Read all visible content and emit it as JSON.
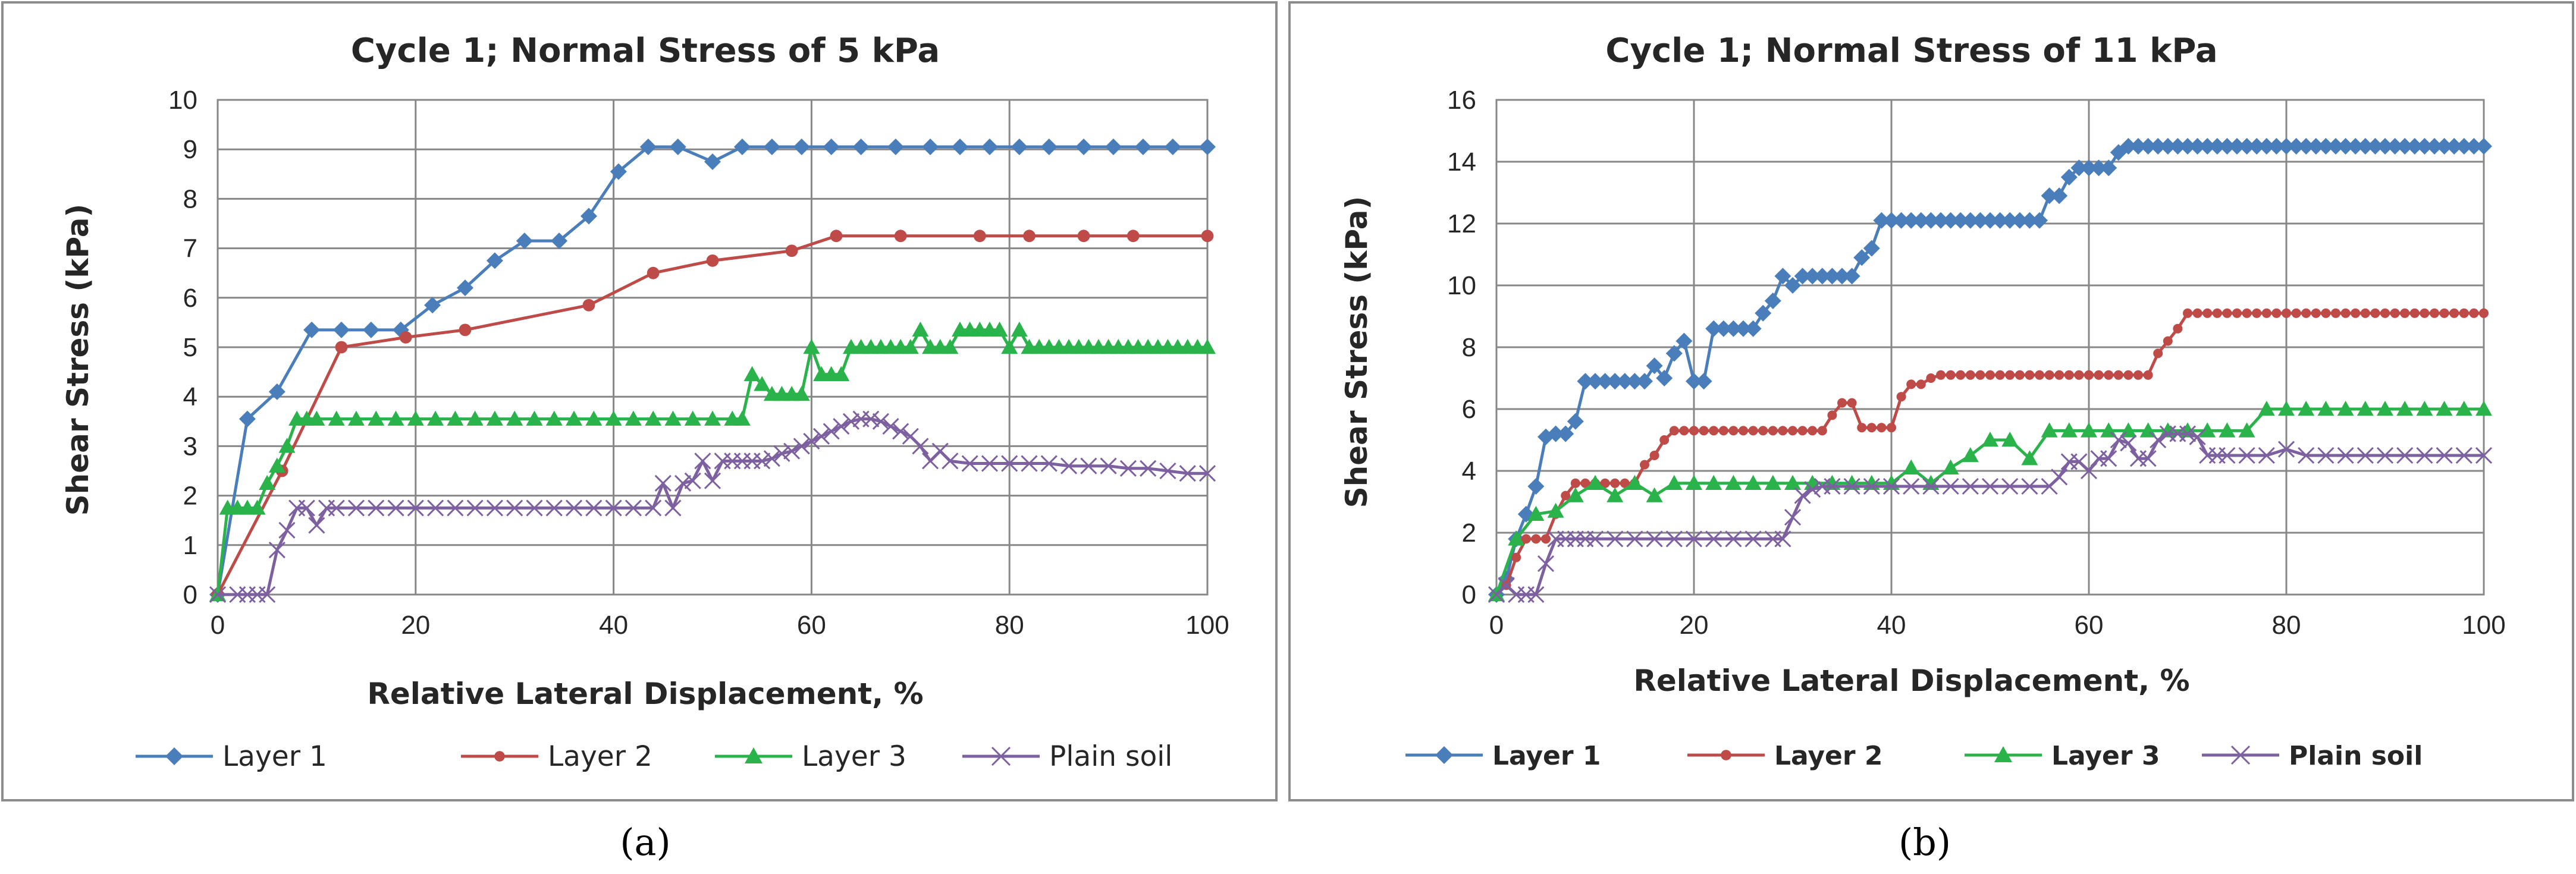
{
  "chart_data": [
    {
      "type": "line",
      "panel_label": "(a)",
      "title": "Cycle 1; Normal Stress of 5 kPa",
      "xlabel": "Relative Lateral Displacement, %",
      "ylabel": "Shear Stress (kPa)",
      "xlim": [
        0,
        100
      ],
      "ylim": [
        0,
        10
      ],
      "xticks": [
        0,
        20,
        40,
        60,
        80,
        100
      ],
      "yticks": [
        0,
        1,
        2,
        3,
        4,
        5,
        6,
        7,
        8,
        9,
        10
      ],
      "grid": true,
      "legend_position": "bottom",
      "legend_bold": false,
      "series": [
        {
          "name": "Layer 1",
          "color": "#4a7ebb",
          "marker": "diamond",
          "x": [
            0,
            3,
            6,
            9.5,
            12.5,
            15.5,
            18.5,
            21.7,
            25,
            28,
            31,
            34.5,
            37.5,
            40.5,
            43.5,
            46.5,
            50,
            53,
            56,
            59,
            62,
            65,
            68.5,
            72,
            75,
            78,
            81,
            84,
            87.5,
            90.5,
            93.5,
            96.5,
            100
          ],
          "y": [
            0,
            3.55,
            4.1,
            5.35,
            5.35,
            5.35,
            5.35,
            5.85,
            6.2,
            6.75,
            7.15,
            7.15,
            7.65,
            8.55,
            9.05,
            9.05,
            8.75,
            9.05,
            9.05,
            9.05,
            9.05,
            9.05,
            9.05,
            9.05,
            9.05,
            9.05,
            9.05,
            9.05,
            9.05,
            9.05,
            9.05,
            9.05,
            9.05
          ]
        },
        {
          "name": "Layer 2",
          "color": "#be4b48",
          "marker": "circle",
          "x": [
            0,
            6.5,
            12.5,
            19,
            25,
            37.5,
            44,
            50,
            58,
            62.5,
            69,
            77,
            82,
            87.5,
            92.5,
            100
          ],
          "y": [
            0,
            2.5,
            5.0,
            5.2,
            5.35,
            5.85,
            6.5,
            6.75,
            6.95,
            7.25,
            7.25,
            7.25,
            7.25,
            7.25,
            7.25,
            7.25
          ]
        },
        {
          "name": "Layer 3",
          "color": "#2ab34a",
          "marker": "triangle",
          "x": [
            0,
            1,
            2,
            3,
            4,
            5,
            6,
            7,
            8,
            9,
            10,
            12,
            14,
            16,
            18,
            20,
            22,
            24,
            26,
            28,
            30,
            32,
            34,
            36,
            38,
            40,
            42,
            44,
            46,
            48,
            50,
            52,
            53,
            54,
            55,
            56,
            57,
            58,
            59,
            60,
            61,
            62,
            63,
            64,
            65,
            66,
            67,
            68,
            69,
            70,
            71,
            72,
            73,
            74,
            75,
            76,
            77,
            78,
            79,
            80,
            81,
            82,
            83,
            84,
            85,
            86,
            87,
            88,
            89,
            90,
            91,
            92,
            93,
            94,
            95,
            96,
            97,
            98,
            99,
            100
          ],
          "y": [
            0,
            1.75,
            1.75,
            1.75,
            1.75,
            2.25,
            2.6,
            3.0,
            3.55,
            3.55,
            3.55,
            3.55,
            3.55,
            3.55,
            3.55,
            3.55,
            3.55,
            3.55,
            3.55,
            3.55,
            3.55,
            3.55,
            3.55,
            3.55,
            3.55,
            3.55,
            3.55,
            3.55,
            3.55,
            3.55,
            3.55,
            3.55,
            3.55,
            4.45,
            4.25,
            4.05,
            4.05,
            4.05,
            4.05,
            5.0,
            4.45,
            4.45,
            4.45,
            5.0,
            5.0,
            5.0,
            5.0,
            5.0,
            5.0,
            5.0,
            5.35,
            5.0,
            5.0,
            5.0,
            5.35,
            5.35,
            5.35,
            5.35,
            5.35,
            5.0,
            5.35,
            5.0,
            5.0,
            5.0,
            5.0,
            5.0,
            5.0,
            5.0,
            5.0,
            5.0,
            5.0,
            5.0,
            5.0,
            5.0,
            5.0,
            5.0,
            5.0,
            5.0,
            5.0,
            5.0
          ]
        },
        {
          "name": "Plain soil",
          "color": "#7d60a0",
          "marker": "x",
          "x": [
            0,
            2,
            3,
            4,
            5,
            6,
            7,
            8,
            9,
            10,
            11,
            12,
            14,
            16,
            18,
            20,
            22,
            24,
            26,
            28,
            30,
            32,
            34,
            36,
            38,
            40,
            42,
            44,
            45,
            46,
            47,
            48,
            49,
            50,
            51,
            52,
            53,
            54,
            55,
            56,
            57,
            58,
            59,
            60,
            61,
            62,
            63,
            64,
            65,
            66,
            67,
            68,
            69,
            70,
            71,
            72,
            73,
            74,
            76,
            78,
            80,
            82,
            84,
            86,
            88,
            90,
            92,
            94,
            96,
            98,
            100
          ],
          "y": [
            0,
            0,
            0,
            0,
            0,
            0.9,
            1.3,
            1.75,
            1.75,
            1.4,
            1.75,
            1.75,
            1.75,
            1.75,
            1.75,
            1.75,
            1.75,
            1.75,
            1.75,
            1.75,
            1.75,
            1.75,
            1.75,
            1.75,
            1.75,
            1.75,
            1.75,
            1.75,
            2.25,
            1.75,
            2.25,
            2.3,
            2.7,
            2.3,
            2.7,
            2.7,
            2.7,
            2.7,
            2.7,
            2.75,
            2.85,
            2.9,
            3.0,
            3.1,
            3.2,
            3.3,
            3.4,
            3.5,
            3.55,
            3.55,
            3.5,
            3.4,
            3.3,
            3.2,
            3.0,
            2.7,
            2.9,
            2.7,
            2.65,
            2.65,
            2.65,
            2.65,
            2.65,
            2.6,
            2.6,
            2.6,
            2.55,
            2.55,
            2.5,
            2.45,
            2.45
          ]
        }
      ]
    },
    {
      "type": "line",
      "panel_label": "(b)",
      "title": "Cycle 1; Normal Stress of 11 kPa",
      "xlabel": "Relative Lateral Displacement, %",
      "ylabel": "Shear Stress (kPa)",
      "xlim": [
        0,
        100
      ],
      "ylim": [
        0,
        16
      ],
      "xticks": [
        0,
        20,
        40,
        60,
        80,
        100
      ],
      "yticks": [
        0,
        2,
        4,
        6,
        8,
        10,
        12,
        14,
        16
      ],
      "grid": true,
      "legend_position": "bottom",
      "legend_bold": true,
      "series": [
        {
          "name": "Layer 1",
          "color": "#4a7ebb",
          "marker": "diamond",
          "x": [
            0,
            1,
            2,
            3,
            4,
            5,
            6,
            7,
            8,
            9,
            10,
            11,
            12,
            13,
            14,
            15,
            16,
            17,
            18,
            19,
            20,
            21,
            22,
            23,
            24,
            25,
            26,
            27,
            28,
            29,
            30,
            31,
            32,
            33,
            34,
            35,
            36,
            37,
            38,
            39,
            40,
            41,
            42,
            43,
            44,
            45,
            46,
            47,
            48,
            49,
            50,
            51,
            52,
            53,
            54,
            55,
            56,
            57,
            58,
            59,
            60,
            61,
            62,
            63,
            64,
            65,
            66,
            67,
            68,
            69,
            70,
            71,
            72,
            73,
            74,
            75,
            76,
            77,
            78,
            79,
            80,
            81,
            82,
            83,
            84,
            85,
            86,
            87,
            88,
            89,
            90,
            91,
            92,
            93,
            94,
            95,
            96,
            97,
            98,
            99,
            100
          ],
          "y": [
            0,
            0.5,
            1.8,
            2.6,
            3.5,
            5.1,
            5.2,
            5.2,
            5.6,
            6.9,
            6.9,
            6.9,
            6.9,
            6.9,
            6.9,
            6.9,
            7.4,
            7.0,
            7.8,
            8.2,
            6.9,
            6.9,
            8.6,
            8.6,
            8.6,
            8.6,
            8.6,
            9.1,
            9.5,
            10.3,
            10.0,
            10.3,
            10.3,
            10.3,
            10.3,
            10.3,
            10.3,
            10.9,
            11.2,
            12.1,
            12.1,
            12.1,
            12.1,
            12.1,
            12.1,
            12.1,
            12.1,
            12.1,
            12.1,
            12.1,
            12.1,
            12.1,
            12.1,
            12.1,
            12.1,
            12.1,
            12.9,
            12.9,
            13.5,
            13.8,
            13.8,
            13.8,
            13.8,
            14.3,
            14.5,
            14.5,
            14.5,
            14.5,
            14.5,
            14.5,
            14.5,
            14.5,
            14.5,
            14.5,
            14.5,
            14.5,
            14.5,
            14.5,
            14.5,
            14.5,
            14.5,
            14.5,
            14.5,
            14.5,
            14.5,
            14.5,
            14.5,
            14.5,
            14.5,
            14.5,
            14.5,
            14.5,
            14.5,
            14.5,
            14.5,
            14.5,
            14.5,
            14.5,
            14.5,
            14.5,
            14.5
          ]
        },
        {
          "name": "Layer 2",
          "color": "#be4b48",
          "marker": "circle",
          "x": [
            0,
            1,
            2,
            3,
            4,
            5,
            6,
            7,
            8,
            9,
            10,
            11,
            12,
            13,
            14,
            15,
            16,
            17,
            18,
            19,
            20,
            21,
            22,
            23,
            24,
            25,
            26,
            27,
            28,
            29,
            30,
            31,
            32,
            33,
            34,
            35,
            36,
            37,
            38,
            39,
            40,
            41,
            42,
            43,
            44,
            45,
            46,
            47,
            48,
            49,
            50,
            51,
            52,
            53,
            54,
            55,
            56,
            57,
            58,
            59,
            60,
            61,
            62,
            63,
            64,
            65,
            66,
            67,
            68,
            69,
            70,
            71,
            72,
            73,
            74,
            75,
            76,
            77,
            78,
            79,
            80,
            81,
            82,
            83,
            84,
            85,
            86,
            87,
            88,
            89,
            90,
            91,
            92,
            93,
            94,
            95,
            96,
            97,
            98,
            99,
            100
          ],
          "y": [
            0,
            0.3,
            1.2,
            1.8,
            1.8,
            1.8,
            2.6,
            3.2,
            3.6,
            3.6,
            3.6,
            3.6,
            3.6,
            3.6,
            3.6,
            4.2,
            4.5,
            5.0,
            5.3,
            5.3,
            5.3,
            5.3,
            5.3,
            5.3,
            5.3,
            5.3,
            5.3,
            5.3,
            5.3,
            5.3,
            5.3,
            5.3,
            5.3,
            5.3,
            5.8,
            6.2,
            6.2,
            5.4,
            5.4,
            5.4,
            5.4,
            6.4,
            6.8,
            6.8,
            7.0,
            7.1,
            7.1,
            7.1,
            7.1,
            7.1,
            7.1,
            7.1,
            7.1,
            7.1,
            7.1,
            7.1,
            7.1,
            7.1,
            7.1,
            7.1,
            7.1,
            7.1,
            7.1,
            7.1,
            7.1,
            7.1,
            7.1,
            7.8,
            8.2,
            8.6,
            9.1,
            9.1,
            9.1,
            9.1,
            9.1,
            9.1,
            9.1,
            9.1,
            9.1,
            9.1,
            9.1,
            9.1,
            9.1,
            9.1,
            9.1,
            9.1,
            9.1,
            9.1,
            9.1,
            9.1,
            9.1,
            9.1,
            9.1,
            9.1,
            9.1,
            9.1,
            9.1,
            9.1,
            9.1,
            9.1,
            9.1
          ]
        },
        {
          "name": "Layer 3",
          "color": "#2ab34a",
          "marker": "triangle",
          "x": [
            0,
            2,
            4,
            6,
            8,
            10,
            12,
            14,
            16,
            18,
            20,
            22,
            24,
            26,
            28,
            30,
            32,
            34,
            36,
            38,
            40,
            42,
            44,
            46,
            48,
            50,
            52,
            54,
            56,
            58,
            60,
            62,
            64,
            66,
            68,
            70,
            72,
            74,
            76,
            78,
            80,
            82,
            84,
            86,
            88,
            90,
            92,
            94,
            96,
            98,
            100
          ],
          "y": [
            0,
            1.8,
            2.6,
            2.7,
            3.2,
            3.6,
            3.2,
            3.6,
            3.2,
            3.6,
            3.6,
            3.6,
            3.6,
            3.6,
            3.6,
            3.6,
            3.6,
            3.6,
            3.6,
            3.6,
            3.6,
            4.1,
            3.6,
            4.1,
            4.5,
            5.0,
            5.0,
            4.4,
            5.3,
            5.3,
            5.3,
            5.3,
            5.3,
            5.3,
            5.3,
            5.3,
            5.3,
            5.3,
            5.3,
            6.0,
            6.0,
            6.0,
            6.0,
            6.0,
            6.0,
            6.0,
            6.0,
            6.0,
            6.0,
            6.0,
            6.0
          ]
        },
        {
          "name": "Plain soil",
          "color": "#7d60a0",
          "marker": "x",
          "x": [
            0,
            1,
            2,
            3,
            4,
            5,
            6,
            7,
            8,
            9,
            10,
            12,
            14,
            16,
            18,
            20,
            22,
            24,
            26,
            28,
            29,
            30,
            31,
            32,
            33,
            34,
            36,
            38,
            40,
            42,
            44,
            46,
            48,
            50,
            52,
            54,
            56,
            57,
            58,
            59,
            60,
            61,
            62,
            63,
            64,
            65,
            66,
            67,
            68,
            69,
            70,
            71,
            72,
            73,
            74,
            76,
            78,
            80,
            82,
            84,
            86,
            88,
            90,
            92,
            94,
            96,
            98,
            100
          ],
          "y": [
            0,
            0.3,
            0,
            0,
            0,
            1.0,
            1.8,
            1.8,
            1.8,
            1.8,
            1.8,
            1.8,
            1.8,
            1.8,
            1.8,
            1.8,
            1.8,
            1.8,
            1.8,
            1.8,
            1.8,
            2.5,
            3.2,
            3.4,
            3.5,
            3.5,
            3.5,
            3.5,
            3.5,
            3.5,
            3.5,
            3.5,
            3.5,
            3.5,
            3.5,
            3.5,
            3.5,
            3.8,
            4.3,
            4.3,
            4.0,
            4.4,
            4.4,
            5.0,
            4.9,
            4.4,
            4.4,
            5.0,
            5.2,
            5.2,
            5.2,
            5.1,
            4.5,
            4.5,
            4.5,
            4.5,
            4.5,
            4.7,
            4.5,
            4.5,
            4.5,
            4.5,
            4.5,
            4.5,
            4.5,
            4.5,
            4.5,
            4.5
          ]
        }
      ]
    }
  ]
}
